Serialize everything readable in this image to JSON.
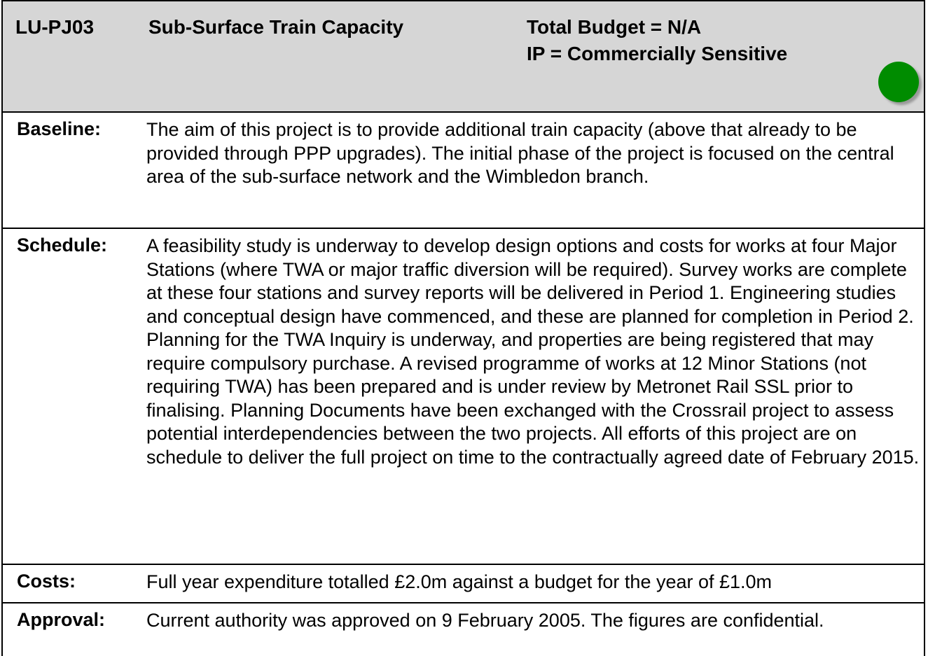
{
  "header": {
    "code": "LU-PJ03",
    "title": "Sub-Surface Train Capacity",
    "budget": "Total Budget = N/A",
    "ip": "IP = Commercially Sensitive"
  },
  "rows": [
    {
      "label": "Baseline:",
      "text": "The aim of this project is to provide additional train capacity (above that already to be provided through PPP upgrades). The initial phase of the project is focused on the central area of the sub-surface network and the Wimbledon branch."
    },
    {
      "label": "Schedule:",
      "text": "A feasibility study is underway to develop design options and costs for works at four Major Stations (where TWA or major traffic diversion will be required). Survey works are complete at these four stations and survey reports will be delivered in Period 1.  Engineering studies and conceptual design have commenced, and these are planned for completion in Period 2. Planning for the TWA Inquiry is underway, and properties are being registered that may require compulsory purchase. A revised programme of works at 12 Minor Stations (not requiring TWA) has been prepared and is under review by Metronet Rail SSL prior to finalising.  Planning Documents have been exchanged with the Crossrail project to assess potential interdependencies between the two projects. All efforts of this project are on schedule to deliver the full project on time to the contractually agreed date of February 2015."
    },
    {
      "label": "Costs:",
      "text": "Full year expenditure totalled £2.0m against a budget for the year of £1.0m"
    },
    {
      "label": "Approval:",
      "text": "Current authority was approved on 9 February 2005. The figures are confidential."
    }
  ]
}
